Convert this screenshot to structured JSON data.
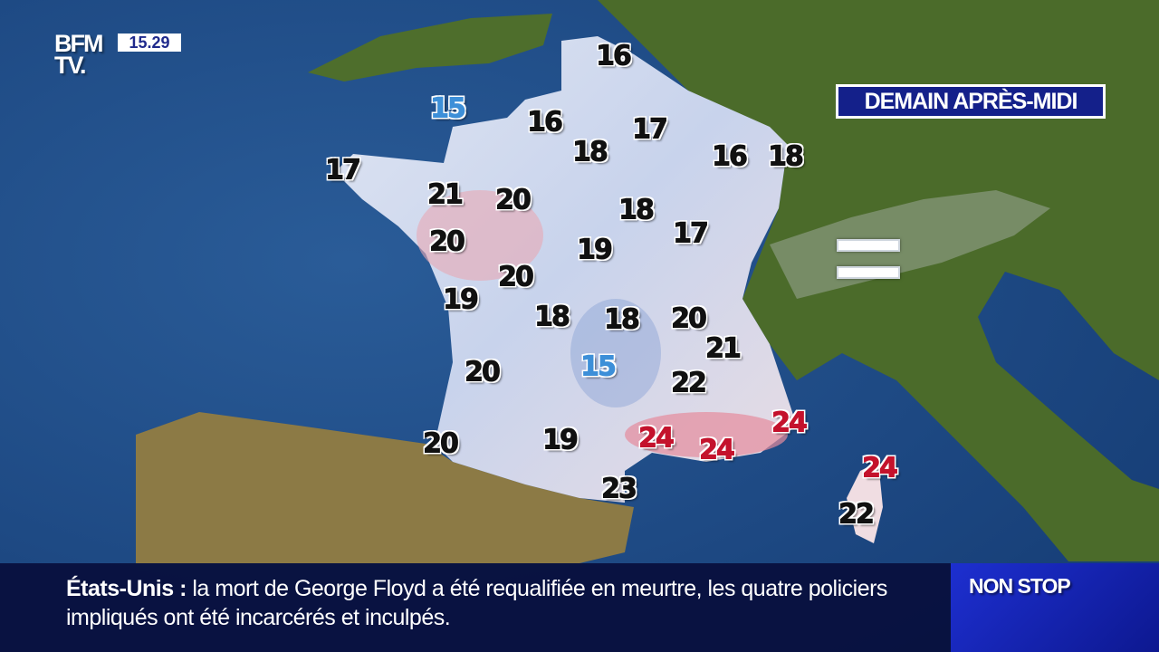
{
  "channel": {
    "logo": "BFM TV.",
    "logo_line1": "BFM",
    "logo_line2": "TV.",
    "clock": "15.29"
  },
  "map": {
    "period_label": "DEMAIN APRÈS-MIDI",
    "legend_icon": "mist-icon",
    "colors": {
      "sea": "#1d4d8a",
      "land": "#4a6b2c",
      "cold": "#3d8fd8",
      "hot": "#c4122c",
      "neutral": "#111111"
    },
    "temperatures": [
      {
        "value": "16",
        "kind": "neutral"
      },
      {
        "value": "15",
        "kind": "cold"
      },
      {
        "value": "16",
        "kind": "neutral"
      },
      {
        "value": "17",
        "kind": "neutral"
      },
      {
        "value": "18",
        "kind": "neutral"
      },
      {
        "value": "16",
        "kind": "neutral"
      },
      {
        "value": "18",
        "kind": "neutral"
      },
      {
        "value": "17",
        "kind": "neutral"
      },
      {
        "value": "21",
        "kind": "neutral"
      },
      {
        "value": "20",
        "kind": "neutral"
      },
      {
        "value": "18",
        "kind": "neutral"
      },
      {
        "value": "17",
        "kind": "neutral"
      },
      {
        "value": "20",
        "kind": "neutral"
      },
      {
        "value": "19",
        "kind": "neutral"
      },
      {
        "value": "20",
        "kind": "neutral"
      },
      {
        "value": "19",
        "kind": "neutral"
      },
      {
        "value": "18",
        "kind": "neutral"
      },
      {
        "value": "18",
        "kind": "neutral"
      },
      {
        "value": "20",
        "kind": "neutral"
      },
      {
        "value": "21",
        "kind": "neutral"
      },
      {
        "value": "20",
        "kind": "neutral"
      },
      {
        "value": "15",
        "kind": "cold"
      },
      {
        "value": "22",
        "kind": "neutral"
      },
      {
        "value": "24",
        "kind": "hot"
      },
      {
        "value": "24",
        "kind": "hot"
      },
      {
        "value": "24",
        "kind": "hot"
      },
      {
        "value": "20",
        "kind": "neutral"
      },
      {
        "value": "19",
        "kind": "neutral"
      },
      {
        "value": "23",
        "kind": "neutral"
      },
      {
        "value": "24",
        "kind": "hot"
      },
      {
        "value": "22",
        "kind": "neutral"
      }
    ]
  },
  "ticker": {
    "topic": "États-Unis :",
    "text": "la mort de George Floyd a été requalifiée en meurtre, les quatre policiers impliqués ont été incarcérés et inculpés.",
    "badge": "NON STOP"
  }
}
